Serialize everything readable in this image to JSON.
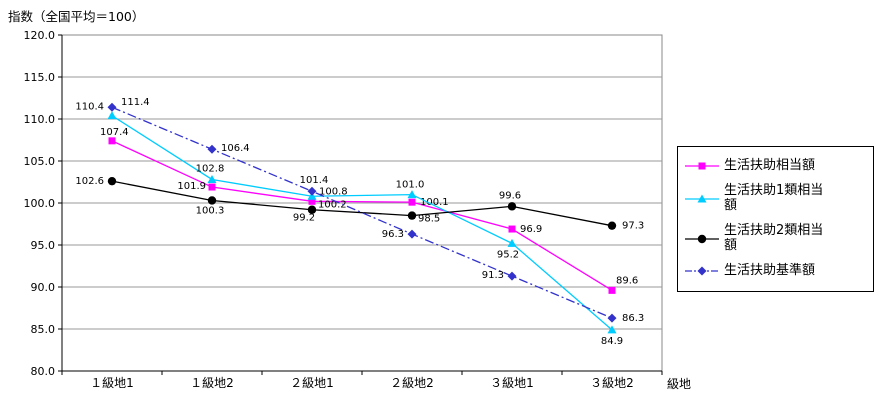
{
  "title": "指数（全国平均＝100）",
  "x_axis_label": "級地",
  "chart_data": {
    "type": "line",
    "title": "指数（全国平均＝100）",
    "xlabel": "級地",
    "categories": [
      "１級地1",
      "１級地2",
      "２級地1",
      "２級地2",
      "３級地1",
      "３級地2"
    ],
    "ylim": [
      80,
      120
    ],
    "ytick_step": 5,
    "ytick_decimals": 1,
    "grid": true,
    "legend_position": "right",
    "series": [
      {
        "name": "生活扶助相当額",
        "color": "#FF00FF",
        "marker": "square",
        "line": "solid",
        "values": [
          107.4,
          101.9,
          100.2,
          100.1,
          96.9,
          89.6
        ],
        "label_offsets": [
          [
            -12,
            -6,
            "start"
          ],
          [
            -6,
            2,
            "end"
          ],
          [
            6,
            6,
            "start"
          ],
          [
            8,
            3,
            "start"
          ],
          [
            8,
            3,
            "start"
          ],
          [
            4,
            -7,
            "start"
          ]
        ]
      },
      {
        "name": "生活扶助1類相当額",
        "color": "#00CCFF",
        "marker": "triangle",
        "line": "solid",
        "values": [
          110.4,
          102.8,
          100.8,
          101.0,
          95.2,
          84.9
        ],
        "label_offsets": [
          [
            -8,
            -6,
            "end"
          ],
          [
            -2,
            -8,
            "middle"
          ],
          [
            7,
            -2,
            "start"
          ],
          [
            -2,
            -7,
            "middle"
          ],
          [
            -4,
            14,
            "middle"
          ],
          [
            0,
            14,
            "middle"
          ]
        ]
      },
      {
        "name": "生活扶助2類相当額",
        "color": "#000000",
        "marker": "circle",
        "line": "solid",
        "values": [
          102.6,
          100.3,
          99.2,
          98.5,
          99.6,
          97.3
        ],
        "label_offsets": [
          [
            -8,
            3,
            "end"
          ],
          [
            -2,
            13,
            "middle"
          ],
          [
            -8,
            11,
            "middle"
          ],
          [
            6,
            6,
            "start"
          ],
          [
            -2,
            -8,
            "middle"
          ],
          [
            10,
            3,
            "start"
          ]
        ]
      },
      {
        "name": "生活扶助基準額",
        "color": "#3333CC",
        "marker": "diamond",
        "line": "dashdot",
        "values": [
          111.4,
          106.4,
          101.4,
          96.3,
          91.3,
          86.3
        ],
        "label_offsets": [
          [
            9,
            -2,
            "start"
          ],
          [
            9,
            2,
            "start"
          ],
          [
            2,
            -8,
            "middle"
          ],
          [
            -8,
            3,
            "end"
          ],
          [
            -8,
            2,
            "end"
          ],
          [
            10,
            3,
            "start"
          ]
        ]
      }
    ]
  }
}
